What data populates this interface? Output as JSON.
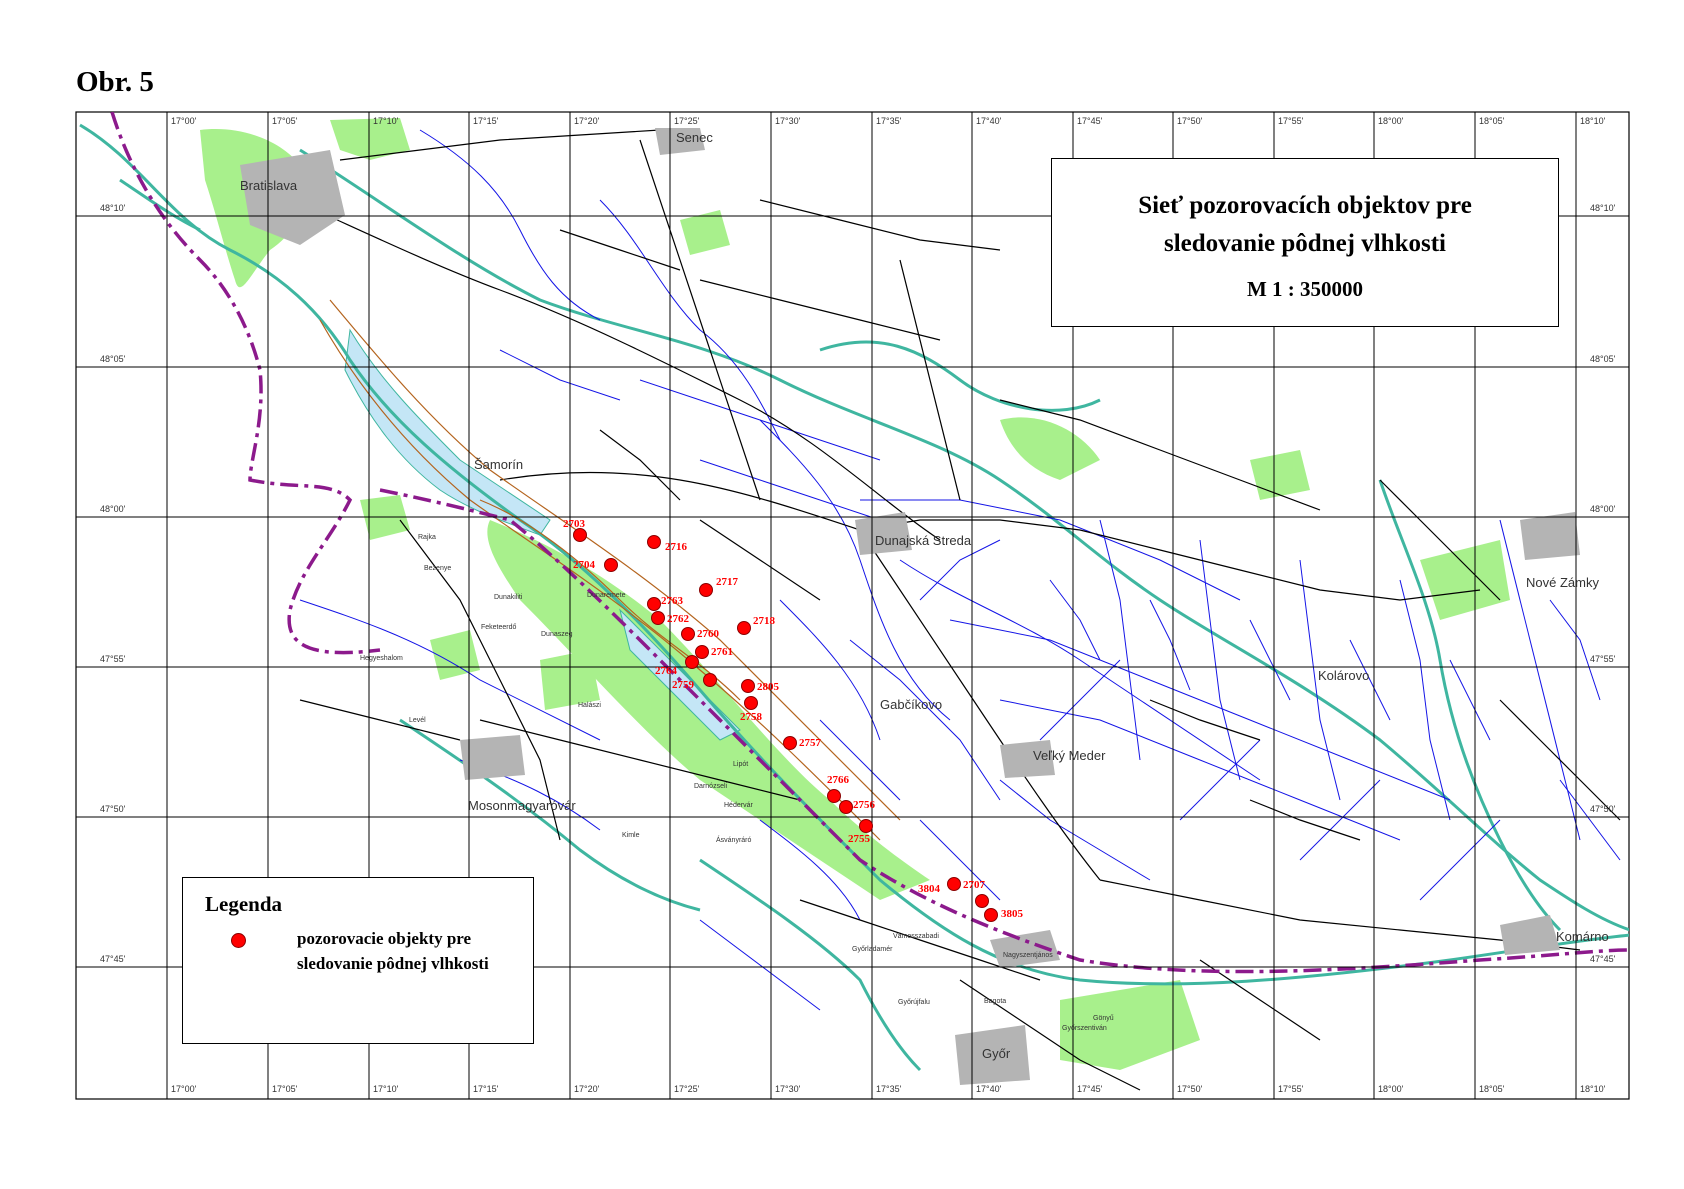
{
  "figure_label": "Obr. 5",
  "title": {
    "line1": "Sieť pozorovacích objektov pre",
    "line2": "sledovanie pôdnej vlhkosti",
    "scale": "M 1 : 350000"
  },
  "legend": {
    "title": "Legenda",
    "item_line1": "pozorovacie objekty pre",
    "item_line2": "sledovanie pôdnej vlhkosti",
    "marker_color": "#ff0000"
  },
  "longitude_ticks": [
    "17°00'",
    "17°05'",
    "17°10'",
    "17°15'",
    "17°20'",
    "17°25'",
    "17°30'",
    "17°35'",
    "17°40'",
    "17°45'",
    "17°50'",
    "17°55'",
    "18°00'",
    "18°05'",
    "18°10'"
  ],
  "latitude_ticks": [
    "48°10'",
    "48°05'",
    "48°00'",
    "47°55'",
    "47°50'",
    "47°45'"
  ],
  "places": {
    "bratislava": "Bratislava",
    "senec": "Senec",
    "samorin": "Šamorín",
    "dunajska_streda": "Dunajská Streda",
    "velky_meder": "Veľký Meder",
    "kolarovo": "Kolárovo",
    "nove_zamky": "Nové Zámky",
    "komarno": "Komárno",
    "gabcikovo": "Gabčíkovo",
    "mosonmagyarovar": "Mosonmagyaróvár",
    "gyor": "Győr",
    "rajka": "Rajka",
    "bezenye": "Bezenye",
    "dunakiliti": "Dunakiliti",
    "dunaszeg": "Dunaszeg",
    "hegyeshalom": "Hegyeshalom",
    "levél": "Levél",
    "lipot": "Lipót",
    "asvanyraro": "Ásványráró",
    "halaszi": "Halászi",
    "kimle": "Kimle",
    "nagyszentjanos": "Nagyszentjános",
    "gonyu": "Gönyű",
    "bagota": "Bagota",
    "darnozseli": "Darnózseli",
    "hedervar": "Hédervár",
    "gyorladamer": "Győrladamér",
    "dunaremete": "Dunaremete",
    "feketeerdo": "Feketeerdő",
    "vamosszabadi": "Vámosszabadi",
    "gyorujfalu": "Győrújfalu",
    "gyorszentivan": "Győrszentiván"
  },
  "map_colors": {
    "forest": "#a8f08c",
    "water": "#c4e6f6",
    "river": "#3fb6a0",
    "stream": "#1414e6",
    "road": "#000000",
    "border": "#8c1a8c",
    "urban": "#b4b4b4",
    "dike": "#b4641e"
  },
  "observation_points": [
    {
      "id": "2703"
    },
    {
      "id": "2716"
    },
    {
      "id": "2704"
    },
    {
      "id": "2717"
    },
    {
      "id": "2763"
    },
    {
      "id": "2762"
    },
    {
      "id": "2718"
    },
    {
      "id": "2760"
    },
    {
      "id": "2761"
    },
    {
      "id": "2764"
    },
    {
      "id": "2759"
    },
    {
      "id": "2805"
    },
    {
      "id": "2758"
    },
    {
      "id": "2757"
    },
    {
      "id": "2756"
    },
    {
      "id": "2755"
    },
    {
      "id": "2766"
    },
    {
      "id": "2707"
    },
    {
      "id": "3804"
    },
    {
      "id": "3805"
    }
  ]
}
